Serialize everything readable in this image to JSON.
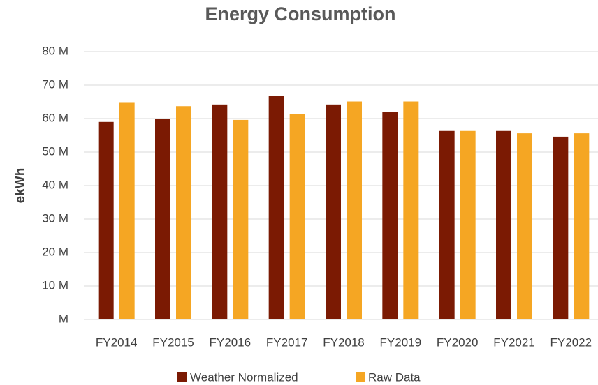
{
  "chart_data": {
    "type": "bar",
    "title": "Energy Consumption",
    "y_label": "ekWh",
    "categories": [
      "FY2014",
      "FY2015",
      "FY2016",
      "FY2017",
      "FY2018",
      "FY2019",
      "FY2020",
      "FY2021",
      "FY2022"
    ],
    "series": [
      {
        "name": "Weather Normalized",
        "color": "#7b1a03",
        "values": [
          59000000,
          60000000,
          64200000,
          66800000,
          64200000,
          62000000,
          56300000,
          56300000,
          54600000
        ]
      },
      {
        "name": "Raw Data",
        "color": "#f5a623",
        "values": [
          64900000,
          63700000,
          59600000,
          61400000,
          65100000,
          65100000,
          56300000,
          55600000,
          55600000
        ]
      }
    ],
    "ylim": [
      0,
      80000000
    ],
    "yticks": [
      {
        "value": 0,
        "label": "M"
      },
      {
        "value": 10000000,
        "label": "10 M"
      },
      {
        "value": 20000000,
        "label": "20 M"
      },
      {
        "value": 30000000,
        "label": "30 M"
      },
      {
        "value": 40000000,
        "label": "40 M"
      },
      {
        "value": 50000000,
        "label": "50 M"
      },
      {
        "value": 60000000,
        "label": "60 M"
      },
      {
        "value": 70000000,
        "label": "70 M"
      },
      {
        "value": 80000000,
        "label": "80 M"
      }
    ],
    "grid": true,
    "legend": "bottom"
  }
}
